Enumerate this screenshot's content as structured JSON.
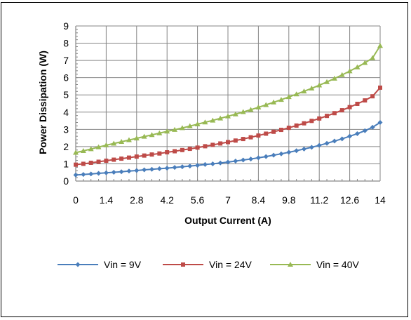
{
  "chart_data": {
    "type": "line",
    "title": "",
    "xlabel": "Output Current (A)",
    "ylabel": "Power Dissipation (W)",
    "xlim": [
      0,
      14
    ],
    "ylim": [
      0,
      9
    ],
    "x_ticks": [
      "0",
      "1.4",
      "2.8",
      "4.2",
      "5.6",
      "7",
      "8.4",
      "9.8",
      "11.2",
      "12.6",
      "14"
    ],
    "y_ticks": [
      "0",
      "1",
      "2",
      "3",
      "4",
      "5",
      "6",
      "7",
      "8",
      "9"
    ],
    "grid": true,
    "legend_position": "bottom",
    "x": [
      0,
      0.35,
      0.7,
      1.05,
      1.4,
      1.75,
      2.1,
      2.45,
      2.8,
      3.15,
      3.5,
      3.85,
      4.2,
      4.55,
      4.9,
      5.25,
      5.6,
      5.95,
      6.3,
      6.65,
      7,
      7.35,
      7.7,
      8.05,
      8.4,
      8.75,
      9.1,
      9.45,
      9.8,
      10.15,
      10.5,
      10.85,
      11.2,
      11.55,
      11.9,
      12.25,
      12.6,
      12.95,
      13.3,
      13.65,
      14
    ],
    "series": [
      {
        "name": "Vin = 9V",
        "color": "#4a7ebb",
        "marker": "diamond",
        "values": [
          0.35,
          0.38,
          0.41,
          0.45,
          0.48,
          0.51,
          0.54,
          0.58,
          0.61,
          0.65,
          0.68,
          0.72,
          0.75,
          0.79,
          0.83,
          0.87,
          0.91,
          0.96,
          1.0,
          1.05,
          1.1,
          1.16,
          1.22,
          1.28,
          1.35,
          1.42,
          1.5,
          1.58,
          1.67,
          1.76,
          1.86,
          1.96,
          2.07,
          2.19,
          2.32,
          2.45,
          2.6,
          2.75,
          2.92,
          3.12,
          3.4
        ]
      },
      {
        "name": "Vin = 24V",
        "color": "#be4b48",
        "marker": "square",
        "values": [
          0.95,
          1.0,
          1.06,
          1.12,
          1.18,
          1.24,
          1.3,
          1.36,
          1.42,
          1.48,
          1.54,
          1.6,
          1.67,
          1.73,
          1.8,
          1.87,
          1.94,
          2.02,
          2.1,
          2.18,
          2.26,
          2.35,
          2.44,
          2.54,
          2.64,
          2.75,
          2.86,
          2.97,
          3.09,
          3.22,
          3.35,
          3.49,
          3.63,
          3.78,
          3.94,
          4.11,
          4.29,
          4.48,
          4.68,
          4.92,
          5.42
        ]
      },
      {
        "name": "Vin = 40V",
        "color": "#98b954",
        "marker": "triangle",
        "values": [
          1.65,
          1.75,
          1.86,
          1.97,
          2.08,
          2.18,
          2.28,
          2.38,
          2.48,
          2.58,
          2.68,
          2.78,
          2.88,
          2.98,
          3.08,
          3.19,
          3.3,
          3.41,
          3.52,
          3.64,
          3.76,
          3.88,
          4.01,
          4.14,
          4.28,
          4.42,
          4.57,
          4.72,
          4.88,
          5.04,
          5.21,
          5.38,
          5.56,
          5.75,
          5.95,
          6.16,
          6.38,
          6.61,
          6.86,
          7.14,
          7.85
        ]
      }
    ]
  }
}
